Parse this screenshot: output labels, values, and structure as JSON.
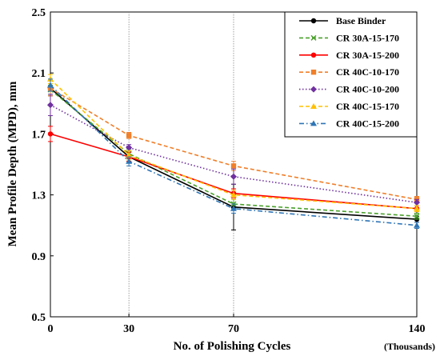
{
  "chart_data": {
    "type": "line",
    "title": "",
    "xlabel": "No. of Polishing Cycles",
    "x_unit_note": "(Thousands)",
    "ylabel": "Mean Profile Depth (MPD), mm",
    "x": [
      0,
      30,
      70,
      140
    ],
    "x_tick_labels": [
      "0",
      "30",
      "70",
      "140"
    ],
    "ylim": [
      0.5,
      2.5
    ],
    "y_ticks": [
      "0.5",
      "0.9",
      "1.3",
      "1.7",
      "2.1",
      "2.5"
    ],
    "vertical_gridlines_at": [
      30,
      70
    ],
    "legend_placement": "top-right",
    "series": [
      {
        "name": "Base Binder",
        "values": [
          2.0,
          1.55,
          1.22,
          1.14
        ],
        "error": [
          0.05,
          0.03,
          0.15,
          0.02
        ],
        "color": "#000000",
        "dash": "solid",
        "marker": "circle"
      },
      {
        "name": "CR 30A-15-170",
        "values": [
          1.99,
          1.57,
          1.24,
          1.16
        ],
        "error": [
          0.03,
          0.03,
          0.03,
          0.02
        ],
        "color": "#4aa02c",
        "dash": "dashed",
        "marker": "x"
      },
      {
        "name": "CR 30A-15-200",
        "values": [
          1.7,
          1.55,
          1.31,
          1.21
        ],
        "error": [
          0.05,
          0.03,
          0.03,
          0.02
        ],
        "color": "#ff0000",
        "dash": "solid",
        "marker": "circle"
      },
      {
        "name": "CR 40C-10-170",
        "values": [
          2.0,
          1.69,
          1.49,
          1.27
        ],
        "error": [
          0.05,
          0.02,
          0.03,
          0.02
        ],
        "color": "#f07f2a",
        "dash": "dashed",
        "marker": "square"
      },
      {
        "name": "CR 40C-10-200",
        "values": [
          1.89,
          1.61,
          1.42,
          1.25
        ],
        "error": [
          0.07,
          0.02,
          0.05,
          0.02
        ],
        "color": "#7030a0",
        "dash": "dotted",
        "marker": "diamond"
      },
      {
        "name": "CR 40C-15-170",
        "values": [
          2.06,
          1.56,
          1.3,
          1.21
        ],
        "error": [
          0.03,
          0.03,
          0.03,
          0.02
        ],
        "color": "#ffc000",
        "dash": "dashed",
        "marker": "triangle"
      },
      {
        "name": "CR 40C-15-200",
        "values": [
          2.02,
          1.52,
          1.21,
          1.1
        ],
        "error": [
          0.04,
          0.03,
          0.03,
          0.02
        ],
        "color": "#2e75b6",
        "dash": "dashdot",
        "marker": "triangle"
      }
    ]
  }
}
